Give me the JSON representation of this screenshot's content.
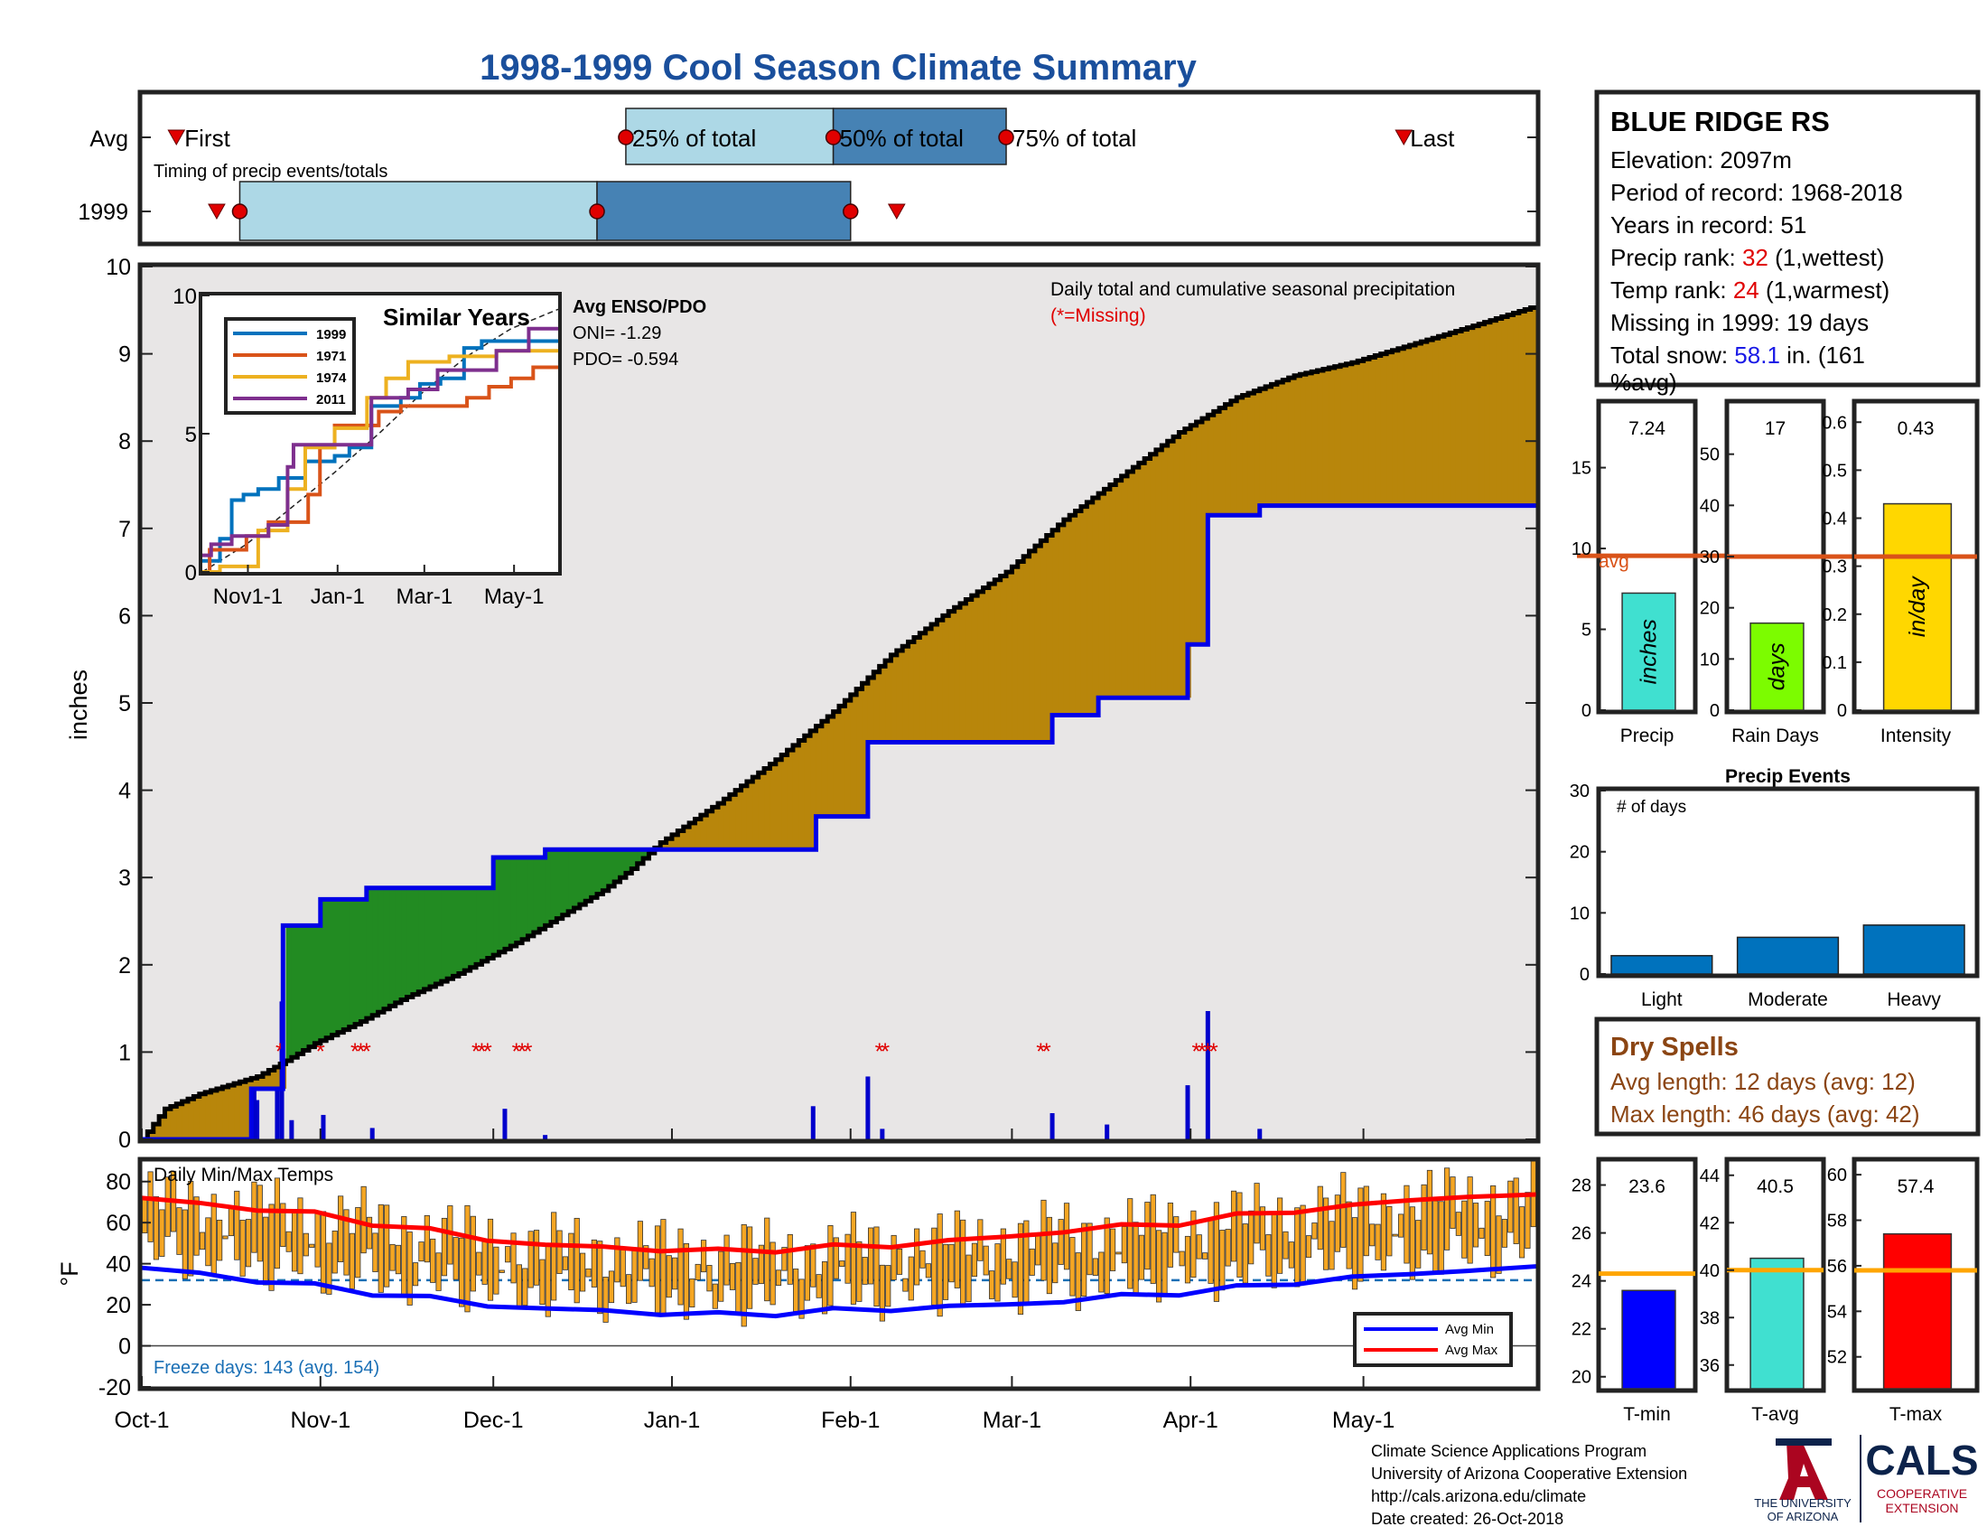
{
  "title": "1998-1999 Cool Season Climate Summary",
  "timing": {
    "subtitle": "Timing of precip events/totals",
    "row_labels": [
      "Avg",
      "1999"
    ],
    "avg_labels": {
      "first": "First",
      "p25": "25% of total",
      "p50": "50% of total",
      "p75": "75% of total",
      "last": "Last"
    },
    "avg_days": {
      "first": 6,
      "p25": 84,
      "p50": 120,
      "p75": 150,
      "last": 219
    },
    "y1999_days": {
      "first": 13,
      "p25": 17,
      "p50": 79,
      "p75": 123,
      "last": 131
    }
  },
  "station": {
    "name": "BLUE RIDGE RS",
    "elevation": "Elevation: 2097m",
    "period": "Period of record: 1968-2018",
    "years": "Years in record: 51",
    "precip_rank_pre": "Precip rank: ",
    "precip_rank_val": "32",
    "precip_rank_post": " (1,wettest)",
    "temp_rank_pre": "Temp rank: ",
    "temp_rank_val": "24",
    "temp_rank_post": " (1,warmest)",
    "missing": "Missing in 1999: 19 days",
    "snow_pre": "Total snow: ",
    "snow_val": "58.1",
    "snow_post": " in. (161",
    "snow_post2": "%avg)"
  },
  "precip_panel": {
    "title": "Daily total and cumulative seasonal precipitation",
    "missing_note": "(*=Missing)",
    "ylabel": "inches",
    "ylim": [
      0,
      10
    ],
    "yticks": [
      "0",
      "1",
      "2",
      "3",
      "4",
      "5",
      "6",
      "7",
      "8",
      "9",
      "10"
    ],
    "months": [
      "Oct-1",
      "Nov-1",
      "Dec-1",
      "Jan-1",
      "Feb-1",
      "Mar-1",
      "Apr-1",
      "May-1"
    ],
    "month_days": [
      0,
      31,
      61,
      92,
      123,
      151,
      182,
      212
    ],
    "ndays": 242
  },
  "chart_data": {
    "type": "area",
    "title": "1998-1999 Cool Season Climate Summary",
    "xlabel": "",
    "ylabel": "inches",
    "ylim": [
      0,
      10
    ],
    "avg_cumulative": [
      [
        0,
        0
      ],
      [
        4,
        0.35
      ],
      [
        10,
        0.52
      ],
      [
        20,
        0.72
      ],
      [
        25,
        0.9
      ],
      [
        30,
        1.1
      ],
      [
        38,
        1.35
      ],
      [
        45,
        1.6
      ],
      [
        55,
        1.9
      ],
      [
        65,
        2.25
      ],
      [
        75,
        2.65
      ],
      [
        80,
        2.85
      ],
      [
        85,
        3.1
      ],
      [
        90,
        3.4
      ],
      [
        100,
        3.85
      ],
      [
        110,
        4.35
      ],
      [
        120,
        4.9
      ],
      [
        130,
        5.55
      ],
      [
        140,
        6.05
      ],
      [
        150,
        6.5
      ],
      [
        160,
        7.1
      ],
      [
        170,
        7.6
      ],
      [
        180,
        8.1
      ],
      [
        190,
        8.5
      ],
      [
        200,
        8.75
      ],
      [
        210,
        8.9
      ],
      [
        220,
        9.1
      ],
      [
        230,
        9.3
      ],
      [
        242,
        9.55
      ]
    ],
    "y1999_cumulative": [
      [
        0,
        0
      ],
      [
        19,
        0
      ],
      [
        19,
        0.58
      ],
      [
        24.5,
        0.58
      ],
      [
        24.5,
        2.45
      ],
      [
        31,
        2.45
      ],
      [
        31,
        2.75
      ],
      [
        39,
        2.75
      ],
      [
        39,
        2.88
      ],
      [
        61,
        2.88
      ],
      [
        61,
        3.23
      ],
      [
        70,
        3.23
      ],
      [
        70,
        3.32
      ],
      [
        117,
        3.32
      ],
      [
        117,
        3.7
      ],
      [
        126,
        3.7
      ],
      [
        126,
        4.55
      ],
      [
        158,
        4.55
      ],
      [
        158,
        4.86
      ],
      [
        166,
        4.86
      ],
      [
        166,
        5.06
      ],
      [
        181.5,
        5.06
      ],
      [
        181.5,
        5.67
      ],
      [
        185,
        5.67
      ],
      [
        185,
        7.15
      ],
      [
        194,
        7.15
      ],
      [
        194,
        7.26
      ],
      [
        242,
        7.26
      ]
    ],
    "daily_bars": [
      [
        19.5,
        0.58
      ],
      [
        20,
        0.45
      ],
      [
        23.5,
        0.58
      ],
      [
        24.3,
        1.58
      ],
      [
        26,
        0.22
      ],
      [
        31.5,
        0.28
      ],
      [
        40,
        0.13
      ],
      [
        63,
        0.35
      ],
      [
        70,
        0.05
      ],
      [
        116.5,
        0.38
      ],
      [
        126,
        0.72
      ],
      [
        128.5,
        0.12
      ],
      [
        158,
        0.3
      ],
      [
        167.5,
        0.17
      ],
      [
        181.5,
        0.62
      ],
      [
        185,
        1.47
      ],
      [
        194,
        0.12
      ]
    ],
    "missing_days": [
      24,
      31,
      37,
      38,
      39,
      58,
      59,
      60,
      65,
      66,
      67,
      128,
      129,
      156,
      157,
      183,
      184,
      185,
      186
    ]
  },
  "similar_years": {
    "title": "Similar Years",
    "legend": [
      "1999",
      "1971",
      "1974",
      "2011"
    ],
    "colors": [
      "#0072bd",
      "#d95319",
      "#edb120",
      "#7e2f8e"
    ],
    "xticks": [
      "Nov1-1",
      "Jan-1",
      "Mar-1",
      "May-1"
    ],
    "xtick_days": [
      31,
      92,
      151,
      212
    ],
    "yticks": [
      "0",
      "5",
      "10"
    ],
    "ymax": 10,
    "ndays": 242,
    "series": [
      [
        [
          0,
          0.4
        ],
        [
          12,
          0.4
        ],
        [
          12,
          1.2
        ],
        [
          20,
          1.2
        ],
        [
          20,
          2.6
        ],
        [
          28,
          2.6
        ],
        [
          28,
          2.8
        ],
        [
          38,
          2.8
        ],
        [
          38,
          3.0
        ],
        [
          52,
          3.0
        ],
        [
          52,
          3.4
        ],
        [
          70,
          3.4
        ],
        [
          70,
          4.0
        ],
        [
          90,
          4.0
        ],
        [
          90,
          4.2
        ],
        [
          100,
          4.2
        ],
        [
          100,
          4.5
        ],
        [
          115,
          4.5
        ],
        [
          115,
          6.0
        ],
        [
          135,
          6.0
        ],
        [
          135,
          6.3
        ],
        [
          148,
          6.3
        ],
        [
          148,
          6.8
        ],
        [
          162,
          6.8
        ],
        [
          162,
          7.0
        ],
        [
          178,
          7.0
        ],
        [
          178,
          8.1
        ],
        [
          190,
          8.1
        ],
        [
          190,
          8.35
        ],
        [
          242,
          8.35
        ]
      ],
      [
        [
          0,
          0
        ],
        [
          5,
          0
        ],
        [
          5,
          0.8
        ],
        [
          30,
          0.8
        ],
        [
          30,
          1.3
        ],
        [
          45,
          1.3
        ],
        [
          45,
          1.8
        ],
        [
          72,
          1.8
        ],
        [
          72,
          2.8
        ],
        [
          80,
          2.8
        ],
        [
          80,
          4.5
        ],
        [
          90,
          4.5
        ],
        [
          90,
          5.3
        ],
        [
          120,
          5.3
        ],
        [
          120,
          5.8
        ],
        [
          135,
          5.8
        ],
        [
          135,
          6.0
        ],
        [
          180,
          6.0
        ],
        [
          180,
          6.3
        ],
        [
          195,
          6.3
        ],
        [
          195,
          6.7
        ],
        [
          210,
          6.7
        ],
        [
          210,
          7.0
        ],
        [
          225,
          7.0
        ],
        [
          225,
          7.4
        ],
        [
          242,
          7.4
        ]
      ],
      [
        [
          0,
          0
        ],
        [
          12,
          0
        ],
        [
          12,
          0.2
        ],
        [
          38,
          0.2
        ],
        [
          38,
          1.5
        ],
        [
          58,
          1.5
        ],
        [
          58,
          3.0
        ],
        [
          70,
          3.0
        ],
        [
          70,
          4.5
        ],
        [
          90,
          4.5
        ],
        [
          90,
          5.2
        ],
        [
          112,
          5.2
        ],
        [
          112,
          6.3
        ],
        [
          125,
          6.3
        ],
        [
          125,
          7.0
        ],
        [
          140,
          7.0
        ],
        [
          140,
          7.6
        ],
        [
          168,
          7.6
        ],
        [
          168,
          7.8
        ],
        [
          200,
          7.8
        ],
        [
          200,
          8.0
        ],
        [
          242,
          8.0
        ]
      ],
      [
        [
          0,
          0.6
        ],
        [
          6,
          0.6
        ],
        [
          6,
          1.0
        ],
        [
          20,
          1.0
        ],
        [
          20,
          1.3
        ],
        [
          45,
          1.3
        ],
        [
          45,
          1.7
        ],
        [
          58,
          1.7
        ],
        [
          58,
          3.8
        ],
        [
          62,
          3.8
        ],
        [
          62,
          4.6
        ],
        [
          115,
          4.6
        ],
        [
          115,
          6.3
        ],
        [
          140,
          6.3
        ],
        [
          140,
          6.6
        ],
        [
          160,
          6.6
        ],
        [
          160,
          7.3
        ],
        [
          200,
          7.3
        ],
        [
          200,
          8.0
        ],
        [
          222,
          8.0
        ],
        [
          222,
          8.8
        ],
        [
          242,
          8.8
        ]
      ]
    ],
    "avg_dashed": [
      [
        0,
        0
      ],
      [
        30,
        1.0
      ],
      [
        60,
        2.3
      ],
      [
        90,
        3.6
      ],
      [
        120,
        5.0
      ],
      [
        150,
        6.5
      ],
      [
        180,
        7.8
      ],
      [
        210,
        8.8
      ],
      [
        242,
        9.5
      ]
    ]
  },
  "enso": {
    "title": "Avg ENSO/PDO",
    "oni": "ONI= -1.29",
    "pdo": "PDO= -0.594"
  },
  "precip_bars": {
    "labels": [
      "Precip",
      "Rain Days",
      "Intensity"
    ],
    "units": [
      "inches",
      "days",
      "in/day"
    ],
    "values": [
      7.24,
      17,
      0.43
    ],
    "value_labels": [
      "7.24",
      "17",
      "0.43"
    ],
    "avgs": [
      9.55,
      30,
      0.32
    ],
    "ymax": [
      19,
      60,
      0.64
    ],
    "yticks": [
      [
        "0",
        "5",
        "10",
        "15"
      ],
      [
        "0",
        "10",
        "20",
        "30",
        "40",
        "50"
      ],
      [
        "0",
        "0.1",
        "0.2",
        "0.3",
        "0.4",
        "0.5",
        "0.6"
      ]
    ],
    "ytick_vals": [
      [
        0,
        5,
        10,
        15
      ],
      [
        0,
        10,
        20,
        30,
        40,
        50
      ],
      [
        0,
        0.1,
        0.2,
        0.3,
        0.4,
        0.5,
        0.6
      ]
    ],
    "colors": [
      "#40e0d0",
      "#7cfc00",
      "#ffd700"
    ],
    "avg_label": "avg"
  },
  "events": {
    "title": "Precip Events",
    "ylabel_note": "# of days",
    "categories": [
      "Light",
      "Moderate",
      "Heavy"
    ],
    "values": [
      3,
      6,
      8
    ],
    "yticks": [
      "0",
      "10",
      "20",
      "30"
    ],
    "ymax": 30,
    "color": "#0072bd"
  },
  "dry_spells": {
    "title": "Dry Spells",
    "avg_len": "Avg length: 12 days (avg: 12)",
    "max_len": "Max length: 46 days (avg: 42)"
  },
  "temps": {
    "title": "Daily Min/Max Temps",
    "ylabel": "°F",
    "yticks": [
      "-20",
      "0",
      "20",
      "40",
      "60",
      "80"
    ],
    "ymin": -20,
    "ymax": 90,
    "freeze_line": 32,
    "freeze_note": "Freeze days: 143 (avg. 154)",
    "legend": [
      "Avg Min",
      "Avg Max"
    ],
    "avg_max": [
      [
        0,
        72
      ],
      [
        10,
        69
      ],
      [
        20,
        67
      ],
      [
        30,
        64
      ],
      [
        40,
        60
      ],
      [
        50,
        56
      ],
      [
        60,
        52
      ],
      [
        70,
        49
      ],
      [
        80,
        48
      ],
      [
        90,
        47
      ],
      [
        100,
        46
      ],
      [
        110,
        47
      ],
      [
        120,
        48
      ],
      [
        130,
        49
      ],
      [
        140,
        51
      ],
      [
        150,
        53
      ],
      [
        160,
        56
      ],
      [
        170,
        58
      ],
      [
        180,
        60
      ],
      [
        190,
        63
      ],
      [
        200,
        66
      ],
      [
        210,
        68
      ],
      [
        220,
        71
      ],
      [
        230,
        73
      ],
      [
        242,
        75
      ]
    ],
    "avg_min": [
      [
        0,
        38
      ],
      [
        10,
        35
      ],
      [
        20,
        32
      ],
      [
        30,
        29
      ],
      [
        40,
        26
      ],
      [
        50,
        23
      ],
      [
        60,
        20
      ],
      [
        70,
        18
      ],
      [
        80,
        17
      ],
      [
        90,
        16
      ],
      [
        100,
        15
      ],
      [
        110,
        16
      ],
      [
        120,
        17
      ],
      [
        130,
        18
      ],
      [
        140,
        19
      ],
      [
        150,
        20
      ],
      [
        160,
        22
      ],
      [
        170,
        24
      ],
      [
        180,
        26
      ],
      [
        190,
        28
      ],
      [
        200,
        31
      ],
      [
        210,
        33
      ],
      [
        220,
        35
      ],
      [
        230,
        37
      ],
      [
        242,
        40
      ]
    ]
  },
  "temp_bars": {
    "labels": [
      "T-min",
      "T-avg",
      "T-max"
    ],
    "values": [
      23.6,
      40.5,
      57.4
    ],
    "value_labels": [
      "23.6",
      "40.5",
      "57.4"
    ],
    "avgs": [
      24.3,
      40.0,
      55.8
    ],
    "ranges": [
      [
        19.5,
        29
      ],
      [
        35,
        44.6
      ],
      [
        50.6,
        60.6
      ]
    ],
    "yticks": [
      [
        "20",
        "22",
        "24",
        "26",
        "28"
      ],
      [
        "36",
        "38",
        "40",
        "42",
        "44"
      ],
      [
        "52",
        "54",
        "56",
        "58",
        "60"
      ]
    ],
    "ytick_vals": [
      [
        20,
        22,
        24,
        26,
        28
      ],
      [
        36,
        38,
        40,
        42,
        44
      ],
      [
        52,
        54,
        56,
        58,
        60
      ]
    ],
    "colors": [
      "#0000ff",
      "#40e0d0",
      "#ff0000"
    ]
  },
  "footer": {
    "line1": "Climate Science Applications Program",
    "line2": "University of Arizona Cooperative Extension",
    "line3": "http://cals.arizona.edu/climate",
    "line4": " Date created: 26-Oct-2018",
    "logo1_a": "THE UNIVERSITY",
    "logo1_b": "OF ARIZONA",
    "logo2": "CALS",
    "logo2_a": "COOPERATIVE",
    "logo2_b": "EXTENSION"
  }
}
